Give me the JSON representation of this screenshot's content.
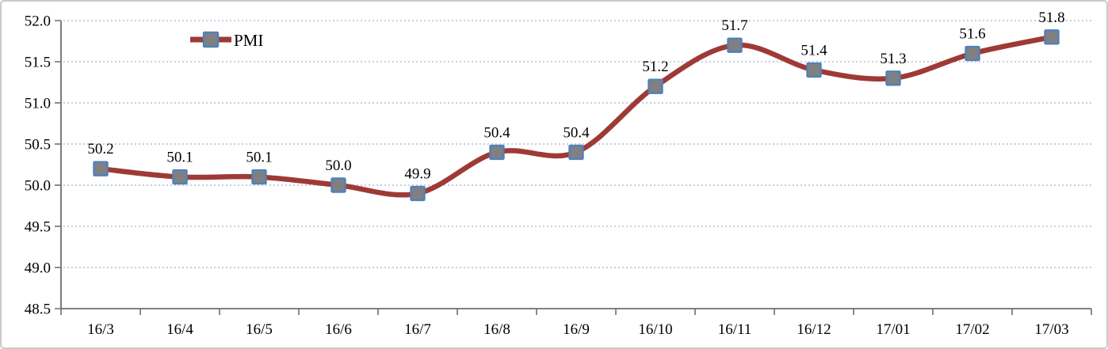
{
  "chart_data": {
    "type": "line",
    "title": "",
    "categories": [
      "16/3",
      "16/4",
      "16/5",
      "16/6",
      "16/7",
      "16/8",
      "16/9",
      "16/10",
      "16/11",
      "16/12",
      "17/01",
      "17/02",
      "17/03"
    ],
    "series": [
      {
        "name": "PMI",
        "values": [
          50.2,
          50.1,
          50.1,
          50.0,
          49.9,
          50.4,
          50.4,
          51.2,
          51.7,
          51.4,
          51.3,
          51.6,
          51.8
        ]
      }
    ],
    "data_labels": [
      "50.2",
      "50.1",
      "50.1",
      "50.0",
      "49.9",
      "50.4",
      "50.4",
      "51.2",
      "51.7",
      "51.4",
      "51.3",
      "51.6",
      "51.8"
    ],
    "ylim": [
      48.5,
      52.0
    ],
    "yticks": [
      "52.0",
      "51.5",
      "51.0",
      "50.5",
      "50.0",
      "49.5",
      "49.0",
      "48.5"
    ],
    "grid": "horizontal-dotted",
    "legend_position": "top-left-inside",
    "colors": {
      "line": "#9e3a36",
      "marker_fill": "#808080",
      "marker_border": "#4f81bd",
      "gridline": "#c6cfe0",
      "axis": "#6e6e6e",
      "text": "#000000",
      "frame_border": "#c9c9c9"
    }
  }
}
